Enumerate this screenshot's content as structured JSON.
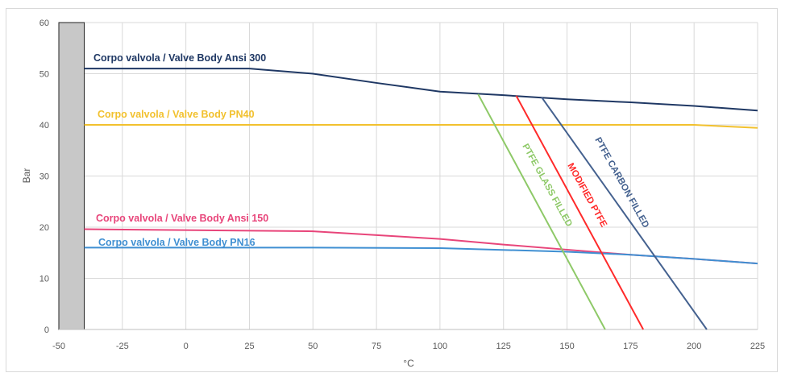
{
  "chart_data": {
    "type": "line",
    "xlabel": "°C",
    "ylabel": "Bar",
    "xlim": [
      -50,
      225
    ],
    "ylim": [
      0,
      60
    ],
    "x_ticks": [
      "-50",
      "-25",
      "0",
      "25",
      "50",
      "75",
      "100",
      "125",
      "150",
      "175",
      "200",
      "225"
    ],
    "y_ticks": [
      "0",
      "10",
      "20",
      "30",
      "40",
      "50",
      "60"
    ],
    "grid": true,
    "shaded_region": {
      "x_from": -50,
      "x_to": -40,
      "color": "#c8c8c8"
    },
    "series": [
      {
        "name": "Corpo valvola / Valve Body Ansi 300",
        "color": "#1f3864",
        "x": [
          -40,
          25,
          50,
          75,
          100,
          125,
          150,
          175,
          200,
          225
        ],
        "y": [
          51,
          51,
          50,
          48.2,
          46.5,
          45.8,
          45,
          44.4,
          43.7,
          42.8
        ]
      },
      {
        "name": "Corpo valvola / Valve Body PN40",
        "color": "#f2c12e",
        "x": [
          -40,
          200,
          225
        ],
        "y": [
          40,
          40,
          39.4
        ]
      },
      {
        "name": "Corpo valvola / Valve Body Ansi 150",
        "color": "#e8457a",
        "x": [
          -40,
          50,
          100,
          125,
          150,
          175,
          200,
          225
        ],
        "y": [
          19.6,
          19.2,
          17.7,
          16.6,
          15.6,
          14.6,
          13.8,
          12.9
        ]
      },
      {
        "name": "Corpo valvola / Valve Body PN16",
        "color": "#3f8fd2",
        "x": [
          -40,
          50,
          100,
          150,
          175,
          200,
          225
        ],
        "y": [
          16,
          16,
          15.9,
          15.2,
          14.6,
          13.8,
          12.9
        ]
      },
      {
        "name": "PTFE GLASS FILLED",
        "color": "#8ec968",
        "x": [
          115,
          165
        ],
        "y": [
          46,
          0
        ]
      },
      {
        "name": "MODIFIED PTFE",
        "color": "#ff2a2a",
        "x": [
          130,
          180
        ],
        "y": [
          45.7,
          0
        ]
      },
      {
        "name": "PTFE CARBON FILLED",
        "color": "#44618f",
        "x": [
          140,
          205
        ],
        "y": [
          45.4,
          0
        ]
      }
    ]
  }
}
